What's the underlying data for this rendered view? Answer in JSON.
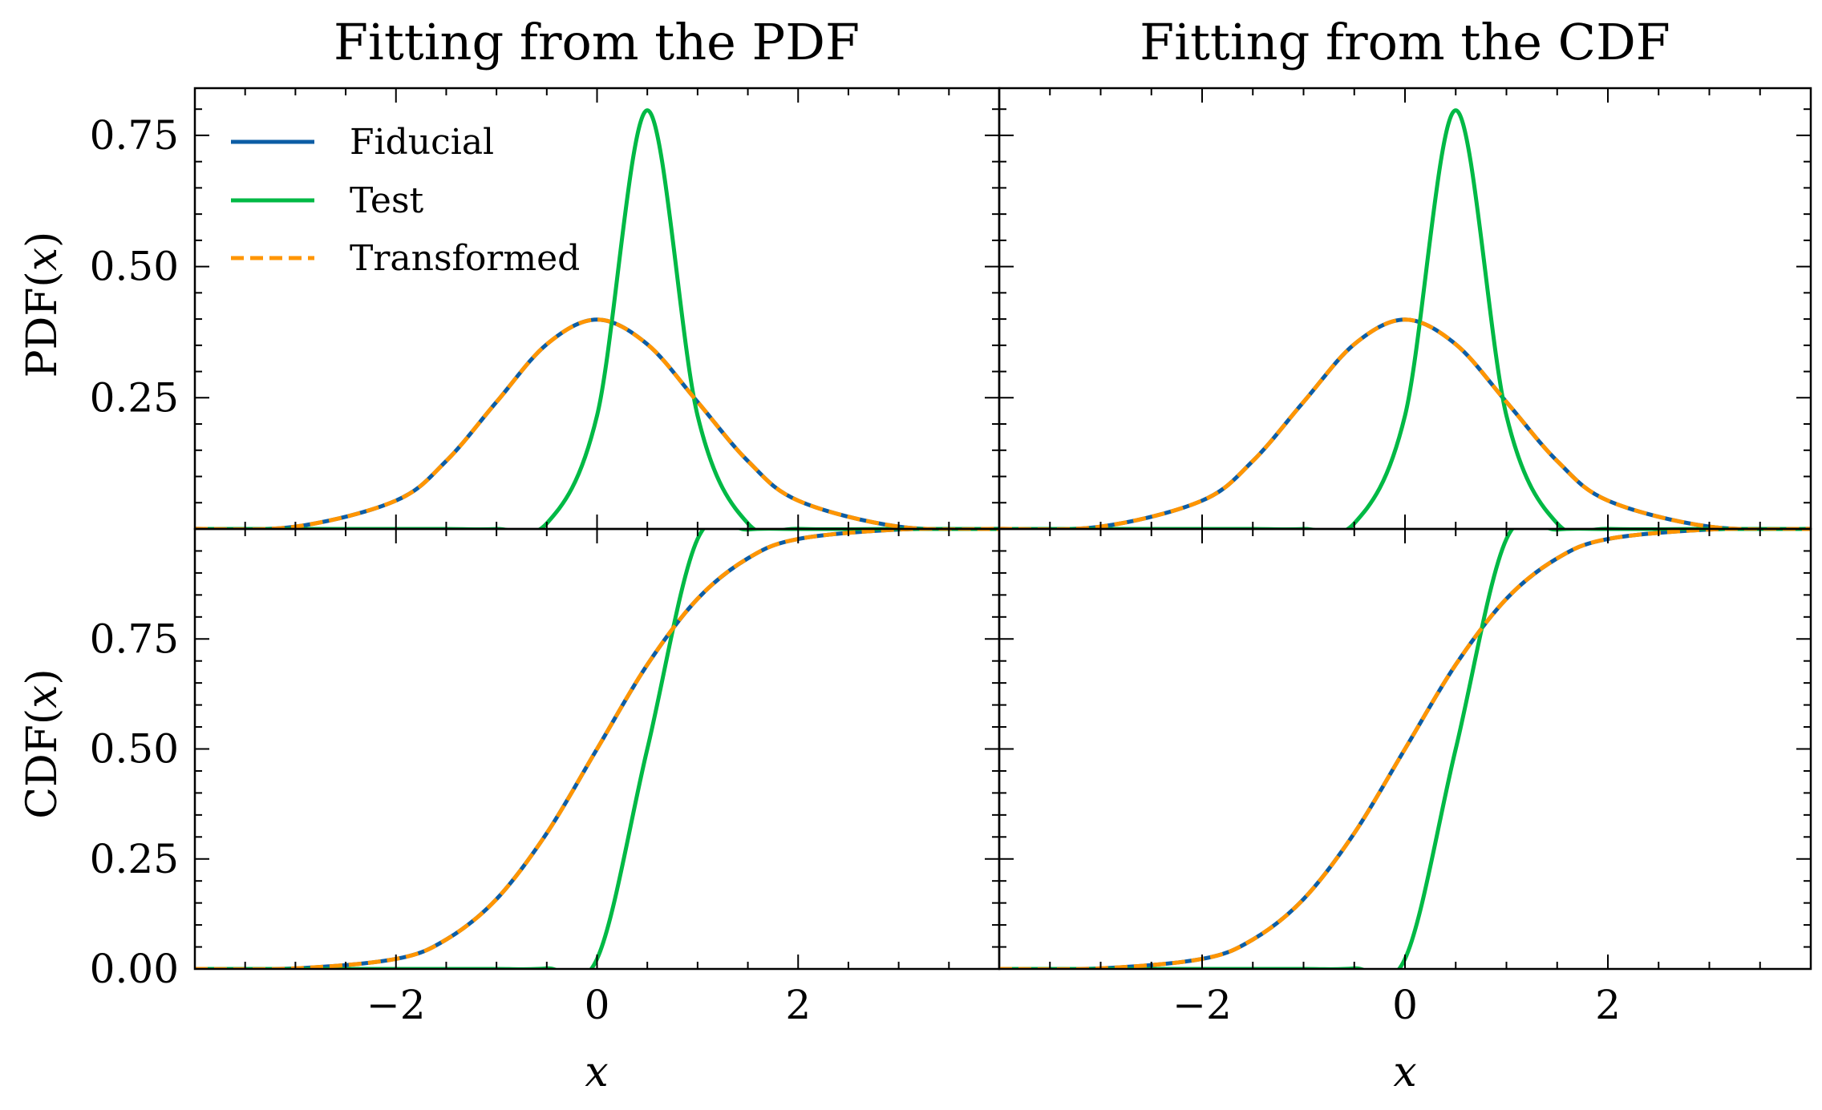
{
  "colors": {
    "fiducial": "#0C5DA5",
    "test": "#00B945",
    "transformed": "#FF9500"
  },
  "legend": {
    "placement": "upper-left",
    "entries": [
      {
        "name": "Fiducial",
        "style": "solid",
        "color": "#0C5DA5"
      },
      {
        "name": "Test",
        "style": "solid",
        "color": "#00B945"
      },
      {
        "name": "Transformed",
        "style": "dashed",
        "color": "#FF9500"
      }
    ]
  },
  "columns": [
    {
      "title": "Fitting from the PDF"
    },
    {
      "title": "Fitting from the CDF"
    }
  ],
  "rows": [
    {
      "ylabel_prefix": "PDF(",
      "ylabel_var": "x",
      "ylabel_suffix": ")"
    },
    {
      "ylabel_prefix": "CDF(",
      "ylabel_var": "x",
      "ylabel_suffix": ")"
    }
  ],
  "xlabel": "x",
  "chart_data": [
    {
      "type": "line",
      "panel": "top-left",
      "title": "Fitting from the PDF",
      "ylabel": "PDF(x)",
      "xlim": [
        -4,
        4
      ],
      "ylim": [
        0,
        0.84
      ],
      "xticks": [
        -2,
        0,
        2
      ],
      "xticklabels": [
        "",
        "",
        ""
      ],
      "yticks": [
        0.25,
        0.5,
        0.75
      ],
      "yticklabels": [
        "0.25",
        "0.50",
        "0.75"
      ],
      "x": [
        -4,
        -3,
        -2,
        -1.5,
        -1,
        -0.5,
        0,
        0.5,
        1,
        1.5,
        2,
        3,
        4
      ],
      "series": [
        {
          "name": "Fiducial",
          "values": [
            0.0001,
            0.0044,
            0.054,
            0.1295,
            0.242,
            0.352,
            0.399,
            0.352,
            0.242,
            0.1295,
            0.054,
            0.0044,
            0.0001
          ]
        },
        {
          "name": "Test",
          "values": [
            0.0,
            0.0,
            0.0,
            0.0,
            0.0,
            0.0106,
            0.2159,
            0.7979,
            0.2159,
            0.0106,
            0.0001,
            0.0,
            0.0
          ]
        },
        {
          "name": "Transformed",
          "values": [
            0.0001,
            0.0044,
            0.054,
            0.1295,
            0.242,
            0.352,
            0.399,
            0.352,
            0.242,
            0.1295,
            0.054,
            0.0044,
            0.0001
          ]
        }
      ]
    },
    {
      "type": "line",
      "panel": "top-right",
      "title": "Fitting from the CDF",
      "ylabel": "",
      "xlim": [
        -4,
        4
      ],
      "ylim": [
        0,
        0.84
      ],
      "xticks": [
        -2,
        0,
        2
      ],
      "xticklabels": [
        "",
        "",
        ""
      ],
      "yticks": [
        0.25,
        0.5,
        0.75
      ],
      "yticklabels": [
        "",
        "",
        ""
      ],
      "x": [
        -4,
        -3,
        -2,
        -1.5,
        -1,
        -0.5,
        0,
        0.5,
        1,
        1.5,
        2,
        3,
        4
      ],
      "series": [
        {
          "name": "Fiducial",
          "values": [
            0.0001,
            0.0044,
            0.054,
            0.1295,
            0.242,
            0.352,
            0.399,
            0.352,
            0.242,
            0.1295,
            0.054,
            0.0044,
            0.0001
          ]
        },
        {
          "name": "Test",
          "values": [
            0.0,
            0.0,
            0.0,
            0.0,
            0.0,
            0.0106,
            0.2159,
            0.7979,
            0.2159,
            0.0106,
            0.0001,
            0.0,
            0.0
          ]
        },
        {
          "name": "Transformed",
          "values": [
            0.0001,
            0.0044,
            0.054,
            0.1295,
            0.242,
            0.352,
            0.399,
            0.352,
            0.242,
            0.1295,
            0.054,
            0.0044,
            0.0001
          ]
        }
      ]
    },
    {
      "type": "line",
      "panel": "bottom-left",
      "title": "",
      "ylabel": "CDF(x)",
      "xlabel": "x",
      "xlim": [
        -4,
        4
      ],
      "ylim": [
        0,
        1
      ],
      "xticks": [
        -2,
        0,
        2
      ],
      "xticklabels": [
        "−2",
        "0",
        "2"
      ],
      "yticks": [
        0,
        0.25,
        0.5,
        0.75
      ],
      "yticklabels": [
        "0.00",
        "0.25",
        "0.50",
        "0.75"
      ],
      "x": [
        -4,
        -3,
        -2,
        -1.5,
        -1,
        -0.5,
        0,
        0.5,
        1,
        1.5,
        2,
        3,
        4
      ],
      "series": [
        {
          "name": "Fiducial",
          "values": [
            0.0,
            0.0013,
            0.0228,
            0.0668,
            0.1587,
            0.3085,
            0.5,
            0.6915,
            0.8413,
            0.9332,
            0.9772,
            0.9987,
            1.0
          ]
        },
        {
          "name": "Test",
          "values": [
            0.0,
            0.0,
            0.0,
            0.0,
            0.0,
            0.0013,
            0.0228,
            0.5,
            0.9772,
            0.9987,
            1.0,
            1.0,
            1.0
          ]
        },
        {
          "name": "Transformed",
          "values": [
            0.0,
            0.0013,
            0.0228,
            0.0668,
            0.1587,
            0.3085,
            0.5,
            0.6915,
            0.8413,
            0.9332,
            0.9772,
            0.9987,
            1.0
          ]
        }
      ]
    },
    {
      "type": "line",
      "panel": "bottom-right",
      "title": "",
      "ylabel": "",
      "xlabel": "x",
      "xlim": [
        -4,
        4
      ],
      "ylim": [
        0,
        1
      ],
      "xticks": [
        -2,
        0,
        2
      ],
      "xticklabels": [
        "−2",
        "0",
        "2"
      ],
      "yticks": [
        0,
        0.25,
        0.5,
        0.75
      ],
      "yticklabels": [
        "",
        "",
        "",
        ""
      ],
      "x": [
        -4,
        -3,
        -2,
        -1.5,
        -1,
        -0.5,
        0,
        0.5,
        1,
        1.5,
        2,
        3,
        4
      ],
      "series": [
        {
          "name": "Fiducial",
          "values": [
            0.0,
            0.0013,
            0.0228,
            0.0668,
            0.1587,
            0.3085,
            0.5,
            0.6915,
            0.8413,
            0.9332,
            0.9772,
            0.9987,
            1.0
          ]
        },
        {
          "name": "Test",
          "values": [
            0.0,
            0.0,
            0.0,
            0.0,
            0.0,
            0.0013,
            0.0228,
            0.5,
            0.9772,
            0.9987,
            1.0,
            1.0,
            1.0
          ]
        },
        {
          "name": "Transformed",
          "values": [
            0.0,
            0.0013,
            0.0228,
            0.0668,
            0.1587,
            0.3085,
            0.5,
            0.6915,
            0.8413,
            0.9332,
            0.9772,
            0.9987,
            1.0
          ]
        }
      ]
    }
  ]
}
